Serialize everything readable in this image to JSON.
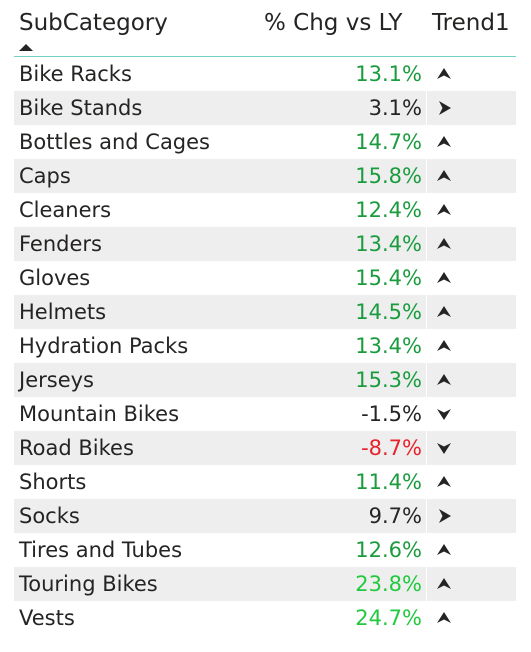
{
  "header": {
    "subcategory": "SubCategory",
    "pct_chg": "% Chg vs LY",
    "trend": "Trend1"
  },
  "colors": {
    "green": "#1a9c3e",
    "bright_green": "#22c93f",
    "red": "#e8222b",
    "neutral": "#252423",
    "header_border": "#74d1c6",
    "row_alt": "#eeeeee"
  },
  "rows": [
    {
      "name": "Bike Racks",
      "value": "13.1%",
      "color": "green",
      "trend": "up-icon"
    },
    {
      "name": "Bike Stands",
      "value": "3.1%",
      "color": "neutral",
      "trend": "right-icon"
    },
    {
      "name": "Bottles and Cages",
      "value": "14.7%",
      "color": "green",
      "trend": "up-icon"
    },
    {
      "name": "Caps",
      "value": "15.8%",
      "color": "green",
      "trend": "up-icon"
    },
    {
      "name": "Cleaners",
      "value": "12.4%",
      "color": "green",
      "trend": "up-icon"
    },
    {
      "name": "Fenders",
      "value": "13.4%",
      "color": "green",
      "trend": "up-icon"
    },
    {
      "name": "Gloves",
      "value": "15.4%",
      "color": "green",
      "trend": "up-icon"
    },
    {
      "name": "Helmets",
      "value": "14.5%",
      "color": "green",
      "trend": "up-icon"
    },
    {
      "name": "Hydration Packs",
      "value": "13.4%",
      "color": "green",
      "trend": "up-icon"
    },
    {
      "name": "Jerseys",
      "value": "15.3%",
      "color": "green",
      "trend": "up-icon"
    },
    {
      "name": "Mountain Bikes",
      "value": "-1.5%",
      "color": "neutral",
      "trend": "down-icon"
    },
    {
      "name": "Road Bikes",
      "value": "-8.7%",
      "color": "red",
      "trend": "down-icon"
    },
    {
      "name": "Shorts",
      "value": "11.4%",
      "color": "green",
      "trend": "up-icon"
    },
    {
      "name": "Socks",
      "value": "9.7%",
      "color": "neutral",
      "trend": "right-icon"
    },
    {
      "name": "Tires and Tubes",
      "value": "12.6%",
      "color": "green",
      "trend": "up-icon"
    },
    {
      "name": "Touring Bikes",
      "value": "23.8%",
      "color": "bright_green",
      "trend": "up-icon"
    },
    {
      "name": "Vests",
      "value": "24.7%",
      "color": "bright_green",
      "trend": "up-icon"
    }
  ]
}
